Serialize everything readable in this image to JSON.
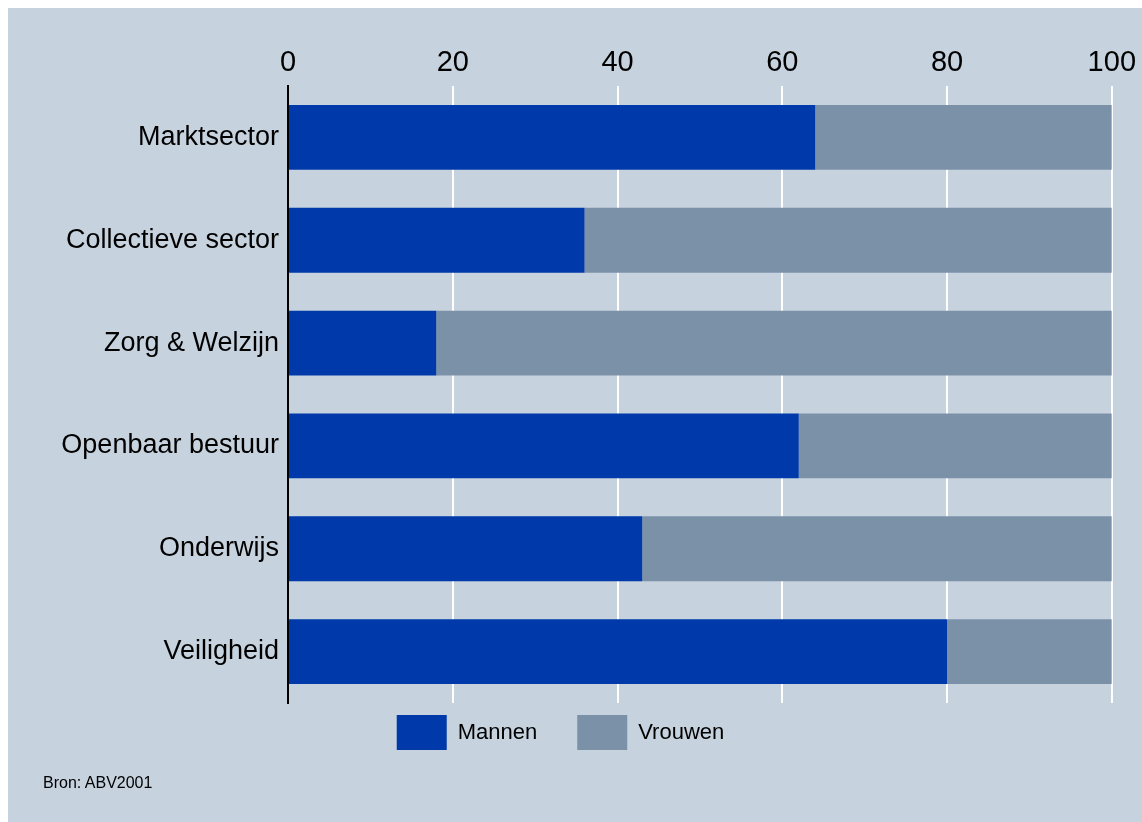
{
  "chart_data": {
    "type": "bar",
    "orientation": "horizontal",
    "stacked": true,
    "categories": [
      "Marktsector",
      "Collectieve sector",
      "Zorg & Welzijn",
      "Openbaar bestuur",
      "Onderwijs",
      "Veiligheid"
    ],
    "series": [
      {
        "name": "Mannen",
        "color": "#0039a9",
        "values": [
          64,
          36,
          18,
          62,
          43,
          80
        ]
      },
      {
        "name": "Vrouwen",
        "color": "#7b91a8",
        "values": [
          36,
          64,
          82,
          38,
          57,
          20
        ]
      }
    ],
    "xlim": [
      0,
      100
    ],
    "xticks": [
      0,
      20,
      40,
      60,
      80,
      100
    ],
    "grid": "x",
    "legend": "bottom",
    "annotations": [
      "Bron: ABV2001"
    ]
  }
}
